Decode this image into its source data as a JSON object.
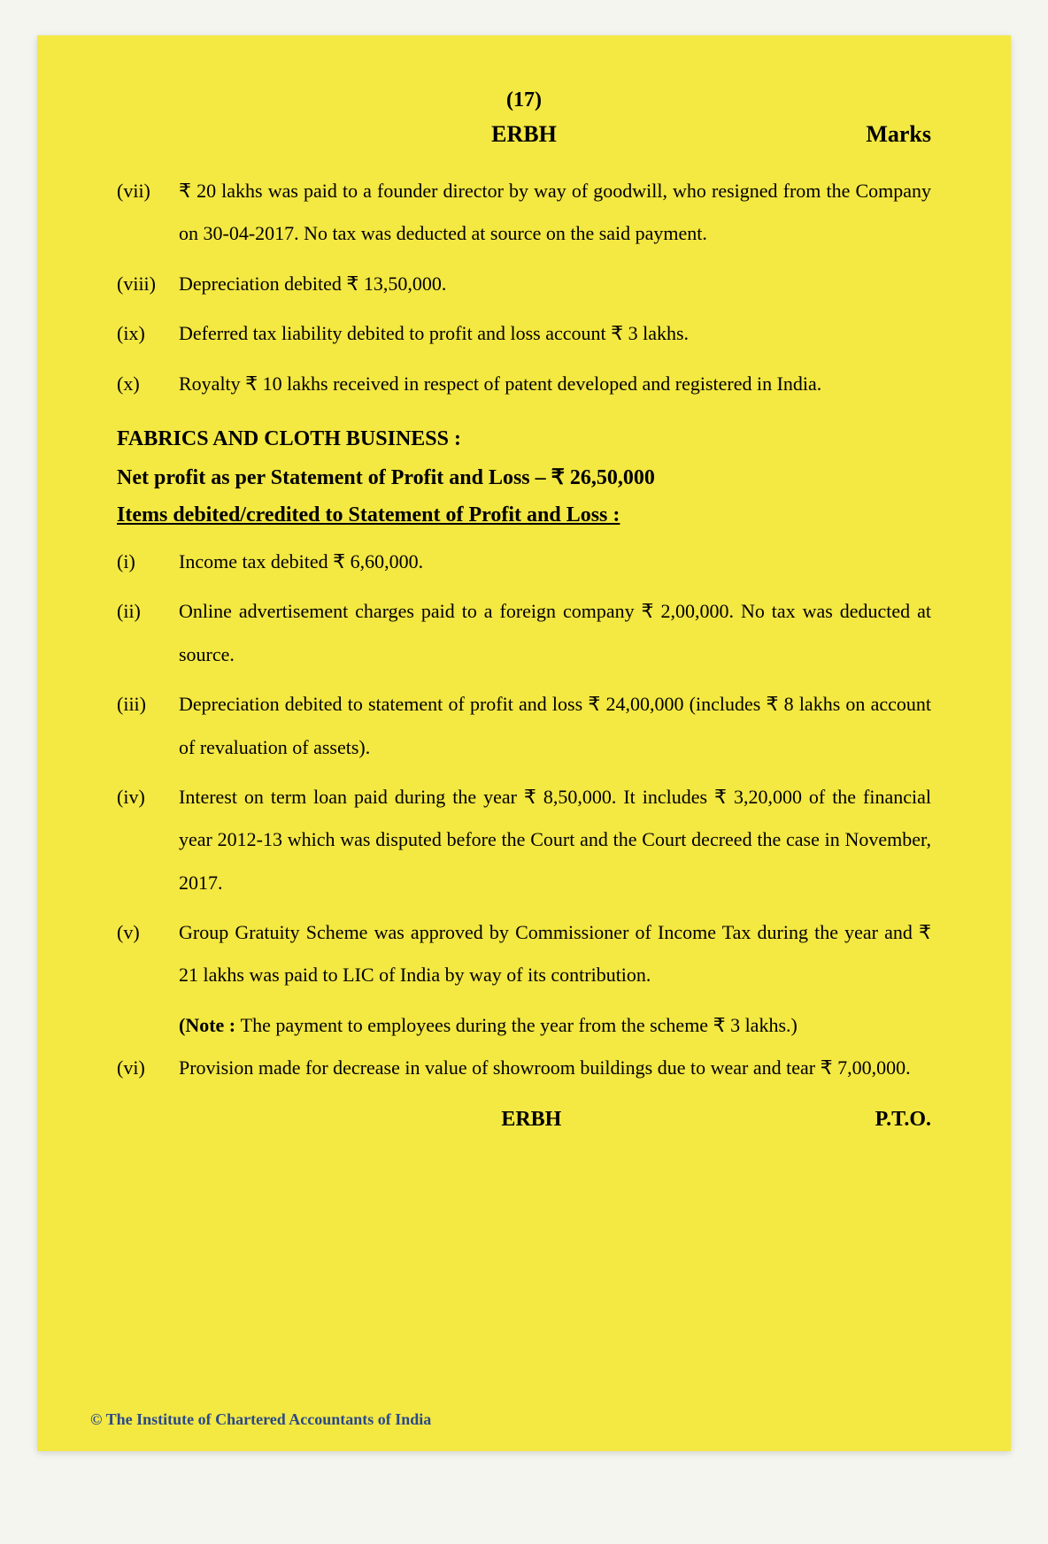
{
  "page_number": "(17)",
  "header_code": "ERBH",
  "marks_label": "Marks",
  "items_top": [
    {
      "marker": "(vii)",
      "text": "₹ 20 lakhs was paid to a founder director by way of goodwill, who resigned from the Company on 30-04-2017. No tax was deducted at source on the said payment."
    },
    {
      "marker": "(viii)",
      "text": "Depreciation debited ₹ 13,50,000."
    },
    {
      "marker": "(ix)",
      "text": "Deferred tax liability debited to profit and loss account ₹ 3 lakhs."
    },
    {
      "marker": "(x)",
      "text": "Royalty ₹ 10 lakhs received in respect of patent developed and registered in India."
    }
  ],
  "section_heading": "FABRICS AND CLOTH BUSINESS :",
  "net_profit_line": "Net profit as per Statement of Profit and Loss – ₹ 26,50,000",
  "items_heading": "Items debited/credited to Statement of Profit and Loss :",
  "items_bottom": [
    {
      "marker": "(i)",
      "text": "Income tax debited ₹ 6,60,000."
    },
    {
      "marker": "(ii)",
      "text": "Online advertisement charges paid to a foreign company ₹ 2,00,000. No tax was deducted at source."
    },
    {
      "marker": "(iii)",
      "text": "Depreciation debited to statement of profit and loss ₹ 24,00,000 (includes ₹ 8 lakhs on account of revaluation of assets)."
    },
    {
      "marker": "(iv)",
      "text": "Interest on term loan paid during the year ₹ 8,50,000. It includes ₹ 3,20,000 of the financial year 2012-13 which was disputed before the Court and the Court decreed the case in November, 2017."
    },
    {
      "marker": "(v)",
      "text": "Group Gratuity Scheme was approved by Commissioner of Income Tax during the year and ₹ 21 lakhs was paid to LIC of India by way of its contribution."
    }
  ],
  "note_prefix": "(Note : ",
  "note_body": "The payment to employees during the year from the scheme ₹ 3 lakhs.)",
  "items_after_note": [
    {
      "marker": "(vi)",
      "text": "Provision made for decrease in value of showroom buildings due to wear and tear ₹ 7,00,000."
    }
  ],
  "footer_code": "ERBH",
  "pto": "P.T.O.",
  "copyright": "© The Institute of Chartered Accountants of India",
  "colors": {
    "page_bg": "#f4e842",
    "text": "#000000",
    "copyright": "#2a4a8a"
  }
}
